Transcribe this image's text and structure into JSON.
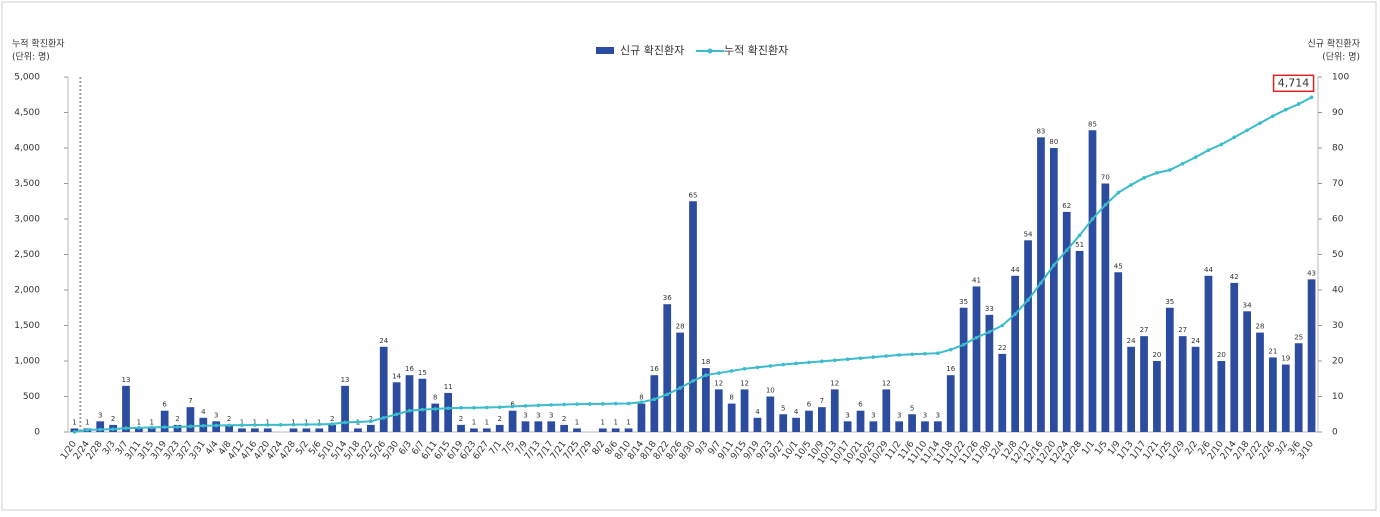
{
  "chart_data": {
    "type": "bar-line",
    "y_label": [
      "누적 확진환자",
      "(단위: 명)"
    ],
    "y2_label": [
      "신규 확진환자",
      "(단위: 명)"
    ],
    "categories": [
      "1/20",
      "2/24",
      "2/28",
      "3/3",
      "3/7",
      "3/11",
      "3/15",
      "3/19",
      "3/23",
      "3/27",
      "3/31",
      "4/4",
      "4/8",
      "4/12",
      "4/16",
      "4/20",
      "4/24",
      "4/28",
      "5/2",
      "5/6",
      "5/10",
      "5/14",
      "5/18",
      "5/22",
      "5/26",
      "5/30",
      "6/3",
      "6/7",
      "6/11",
      "6/15",
      "6/19",
      "6/23",
      "6/27",
      "7/1",
      "7/5",
      "7/9",
      "7/13",
      "7/17",
      "7/21",
      "7/25",
      "7/29",
      "8/2",
      "8/6",
      "8/10",
      "8/14",
      "8/18",
      "8/22",
      "8/26",
      "8/30",
      "9/3",
      "9/7",
      "9/11",
      "9/15",
      "9/19",
      "9/23",
      "9/27",
      "10/1",
      "10/5",
      "10/9",
      "10/13",
      "10/17",
      "10/21",
      "10/25",
      "10/29",
      "11/2",
      "11/6",
      "11/10",
      "11/14",
      "11/18",
      "11/22",
      "11/26",
      "11/30",
      "12/4",
      "12/8",
      "12/12",
      "12/16",
      "12/20",
      "12/24",
      "12/28",
      "1/1",
      "1/5",
      "1/9",
      "1/13",
      "1/17",
      "1/21",
      "1/25",
      "1/29",
      "2/2",
      "2/6",
      "2/10",
      "2/14",
      "2/18",
      "2/22",
      "2/26",
      "3/2",
      "3/6",
      "3/10"
    ],
    "series": [
      {
        "name": "신규 확진환자",
        "color": "#2b4c9f",
        "kind": "bar",
        "axis": "y2",
        "values": [
          1,
          1,
          3,
          2,
          13,
          1,
          1,
          6,
          2,
          7,
          4,
          3,
          2,
          1,
          1,
          1,
          0,
          1,
          1,
          1,
          2,
          13,
          1,
          2,
          24,
          14,
          16,
          15,
          8,
          11,
          2,
          1,
          1,
          2,
          6,
          3,
          3,
          3,
          2,
          1,
          0,
          1,
          1,
          1,
          8,
          16,
          36,
          28,
          65,
          18,
          12,
          8,
          12,
          4,
          10,
          5,
          4,
          6,
          7,
          12,
          3,
          6,
          3,
          12,
          3,
          5,
          3,
          3,
          16,
          35,
          41,
          33,
          22,
          44,
          54,
          83,
          80,
          62,
          51,
          85,
          70,
          45,
          24,
          27,
          20,
          35,
          27,
          24,
          44,
          20,
          42,
          34,
          28,
          21,
          19,
          25,
          43
        ]
      },
      {
        "name": "누적 확진환자",
        "color": "#3bbccd",
        "kind": "line",
        "values": [
          1,
          30,
          35,
          40,
          55,
          60,
          63,
          68,
          71,
          80,
          88,
          92,
          95,
          97,
          99,
          100,
          101,
          103,
          105,
          108,
          112,
          135,
          140,
          150,
          200,
          250,
          300,
          315,
          325,
          335,
          340,
          342,
          345,
          350,
          360,
          368,
          375,
          382,
          388,
          392,
          395,
          397,
          400,
          402,
          420,
          460,
          530,
          620,
          720,
          800,
          830,
          860,
          890,
          910,
          930,
          950,
          965,
          980,
          995,
          1010,
          1025,
          1040,
          1055,
          1070,
          1085,
          1095,
          1102,
          1110,
          1160,
          1230,
          1330,
          1410,
          1500,
          1660,
          1860,
          2100,
          2350,
          2560,
          2770,
          3000,
          3200,
          3370,
          3480,
          3580,
          3650,
          3690,
          3780,
          3870,
          3970,
          4050,
          4150,
          4250,
          4350,
          4450,
          4540,
          4620,
          4714
        ],
        "value_labels": [
          null,
          null,
          null,
          null,
          null,
          null,
          null,
          null,
          null,
          null,
          null,
          null,
          null,
          null,
          null,
          null,
          null,
          null,
          null,
          null,
          null,
          null,
          null,
          null,
          null,
          null,
          null,
          null,
          null,
          null,
          null,
          null,
          null,
          null,
          null,
          null,
          null,
          null,
          null,
          null,
          null,
          null,
          null,
          null,
          null,
          null,
          null,
          null,
          null,
          null,
          null,
          null,
          null,
          null,
          null,
          null,
          null,
          null,
          null,
          null,
          null,
          null,
          null,
          null,
          null,
          null,
          null,
          null,
          null,
          null,
          null,
          null,
          null,
          null,
          null,
          null,
          null,
          null,
          null,
          null,
          null,
          null,
          null,
          null,
          null,
          null,
          null,
          null,
          null,
          null,
          null,
          null,
          null,
          null,
          null,
          null,
          "4,714"
        ]
      }
    ],
    "ylim": [
      0,
      5000
    ],
    "yticks": [
      0,
      500,
      {
        "value": 1000,
        "label": "1,000"
      },
      {
        "value": 1500,
        "label": "1,500"
      },
      {
        "value": 2000,
        "label": "2,000"
      },
      {
        "value": 2500,
        "label": "2,500"
      },
      {
        "value": 3000,
        "label": "3,000"
      },
      {
        "value": 3500,
        "label": "3,500"
      },
      {
        "value": 4000,
        "label": "4,000"
      },
      {
        "value": 4500,
        "label": "4,500"
      },
      {
        "value": 5000,
        "label": "5,000"
      }
    ],
    "y2lim": [
      0,
      100
    ],
    "y2ticks": [
      0,
      10,
      20,
      30,
      40,
      50,
      60,
      70,
      80,
      90,
      100
    ],
    "grid": false,
    "legend": "top"
  }
}
